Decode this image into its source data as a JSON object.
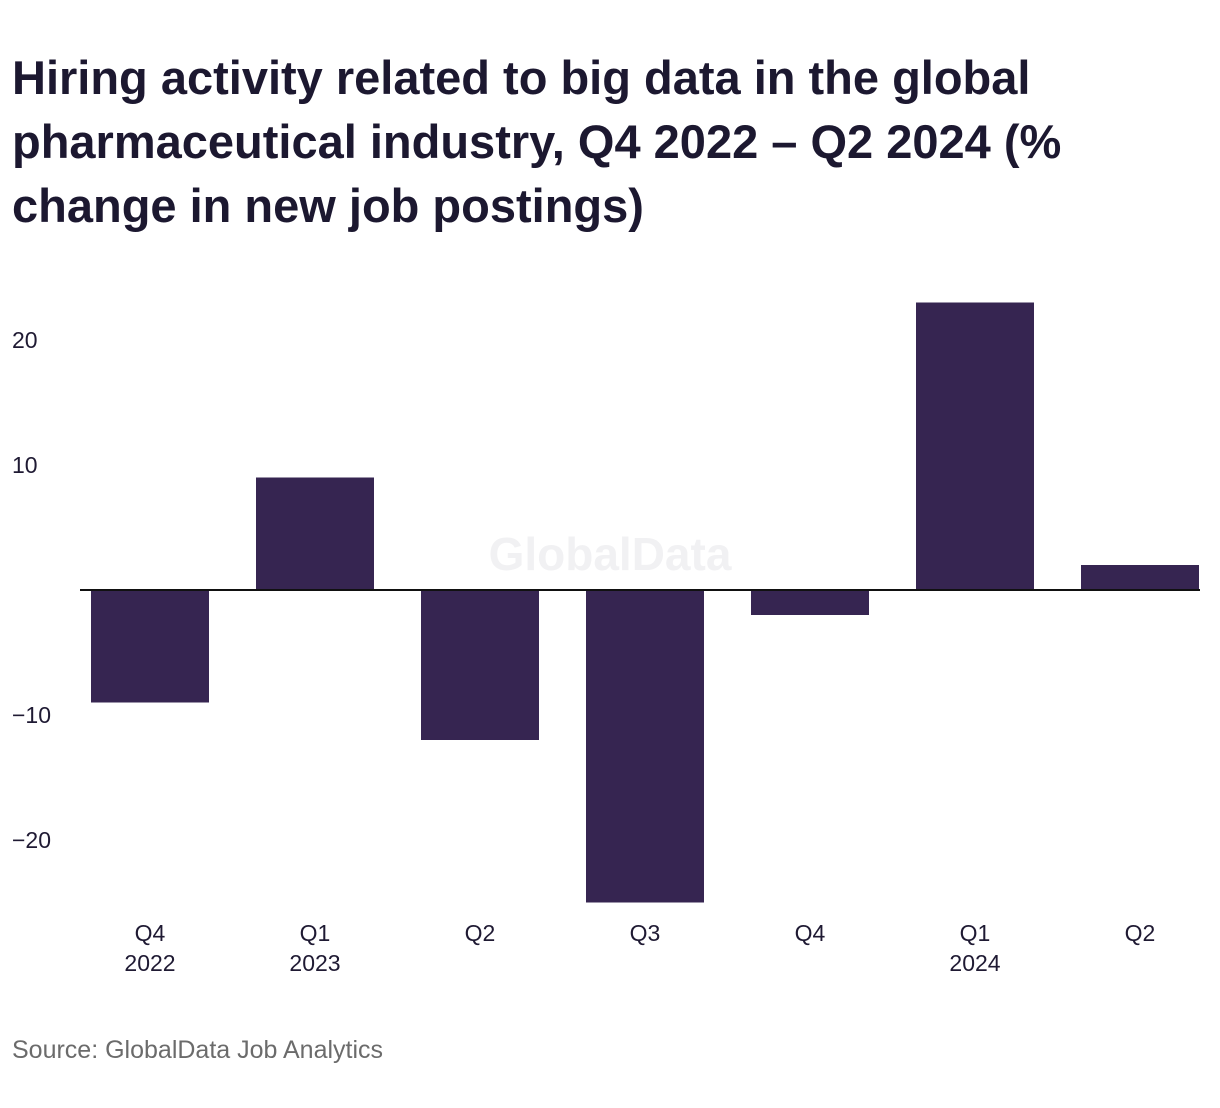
{
  "title": "Hiring activity related to big data in the global pharmaceutical industry, Q4 2022 – Q2 2024 (% change in new job postings)",
  "source": "Source: GlobalData Job Analytics",
  "watermark": "GlobalData",
  "colors": {
    "bar": "#362551",
    "axis": "#111111",
    "text": "#1f1a33",
    "source": "#6b6b6b"
  },
  "chart_data": {
    "type": "bar",
    "categories": [
      {
        "line1": "Q4",
        "line2": "2022"
      },
      {
        "line1": "Q1",
        "line2": "2023"
      },
      {
        "line1": "Q2",
        "line2": ""
      },
      {
        "line1": "Q3",
        "line2": ""
      },
      {
        "line1": "Q4",
        "line2": ""
      },
      {
        "line1": "Q1",
        "line2": "2024"
      },
      {
        "line1": "Q2",
        "line2": ""
      }
    ],
    "values": [
      -9.0,
      9.0,
      -12.0,
      -25.0,
      -2.0,
      23.0,
      2.0
    ],
    "yticks": [
      20,
      10,
      -10,
      -20
    ],
    "ytick_labels": [
      "20",
      "10",
      "−10",
      "−20"
    ],
    "ylim": [
      -26.5,
      25
    ],
    "grid": false,
    "legend": "none"
  }
}
